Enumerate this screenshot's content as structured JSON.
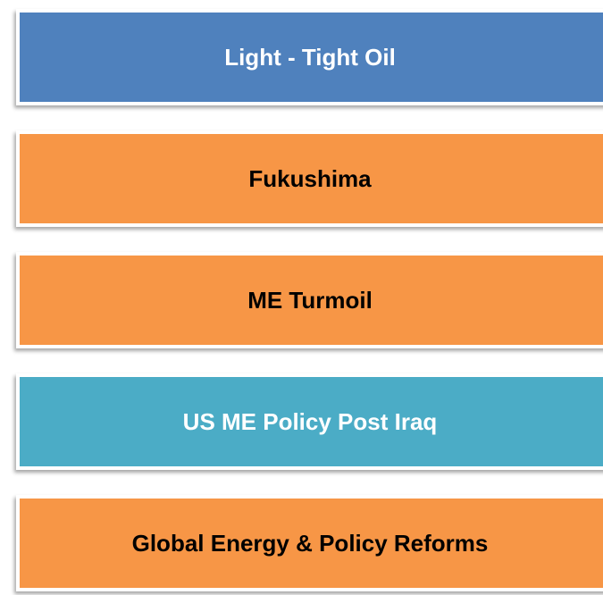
{
  "boxes": [
    {
      "label": "Light - Tight Oil"
    },
    {
      "label": "Fukushima"
    },
    {
      "label": "ME Turmoil"
    },
    {
      "label": "US ME Policy Post Iraq"
    },
    {
      "label": "Global Energy & Policy Reforms"
    }
  ]
}
